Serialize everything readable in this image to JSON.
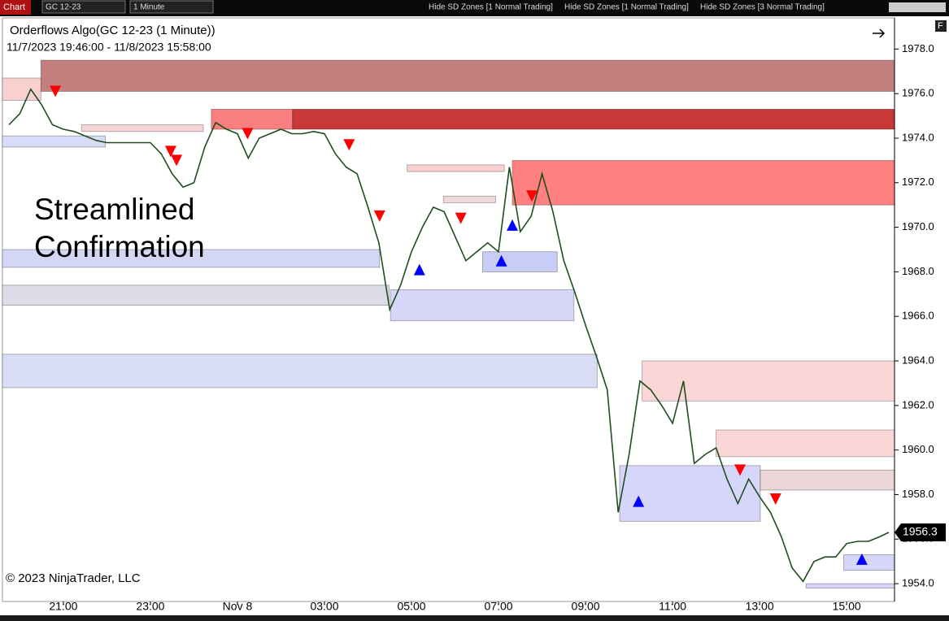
{
  "toolbar": {
    "app": "Chart",
    "instrument": "GC 12-23",
    "interval": "1 Minute",
    "buttons": [
      "Hide SD Zones [1 Normal Trading]",
      "Hide SD Zones [1 Normal Trading]",
      "Hide SD Zones [3 Normal Trading]"
    ],
    "axis_button": "F"
  },
  "chart_data": {
    "type": "line",
    "title": "Orderflows Algo(GC 12-23 (1 Minute))",
    "subtitle": "11/7/2023 19:46:00 - 11/8/2023 15:58:00",
    "annotation": [
      "Streamlined",
      "Confirmation"
    ],
    "copyright": "© 2023 NinjaTrader, LLC",
    "xlim": [
      "2023-11-07 19:36",
      "2023-11-08 16:06"
    ],
    "xticks": [
      {
        "value": "2023-11-07 21:00",
        "label": "21:00"
      },
      {
        "value": "2023-11-07 23:00",
        "label": "23:00"
      },
      {
        "value": "2023-11-08 01:00",
        "label": "Nov 8"
      },
      {
        "value": "2023-11-08 03:00",
        "label": "03:00"
      },
      {
        "value": "2023-11-08 05:00",
        "label": "05:00"
      },
      {
        "value": "2023-11-08 07:00",
        "label": "07:00"
      },
      {
        "value": "2023-11-08 09:00",
        "label": "09:00"
      },
      {
        "value": "2023-11-08 11:00",
        "label": "11:00"
      },
      {
        "value": "2023-11-08 13:00",
        "label": "13:00"
      },
      {
        "value": "2023-11-08 15:00",
        "label": "15:00"
      }
    ],
    "ylim": [
      1953.2,
      1979.4
    ],
    "yticks": [
      {
        "value": 1954,
        "label": "1954.0"
      },
      {
        "value": 1956,
        "label": "1956.0"
      },
      {
        "value": 1958,
        "label": "1958.0"
      },
      {
        "value": 1960,
        "label": "1960.0"
      },
      {
        "value": 1962,
        "label": "1962.0"
      },
      {
        "value": 1964,
        "label": "1964.0"
      },
      {
        "value": 1966,
        "label": "1966.0"
      },
      {
        "value": 1968,
        "label": "1968.0"
      },
      {
        "value": 1970,
        "label": "1970.0"
      },
      {
        "value": 1972,
        "label": "1972.0"
      },
      {
        "value": 1974,
        "label": "1974.0"
      },
      {
        "value": 1976,
        "label": "1976.0"
      },
      {
        "value": 1978,
        "label": "1978.0"
      }
    ],
    "grid": false,
    "last_price": 1956.3,
    "series": [
      {
        "color": "#1f4d1f",
        "x": [
          "2023-11-07 19:45",
          "2023-11-07 20:00",
          "2023-11-07 20:15",
          "2023-11-07 20:30",
          "2023-11-07 20:45",
          "2023-11-07 21:00",
          "2023-11-07 21:15",
          "2023-11-07 21:30",
          "2023-11-07 21:45",
          "2023-11-07 22:00",
          "2023-11-07 22:15",
          "2023-11-07 22:30",
          "2023-11-07 22:45",
          "2023-11-07 23:00",
          "2023-11-07 23:15",
          "2023-11-07 23:30",
          "2023-11-07 23:45",
          "2023-11-08 00:00",
          "2023-11-08 00:15",
          "2023-11-08 00:30",
          "2023-11-08 00:45",
          "2023-11-08 01:00",
          "2023-11-08 01:15",
          "2023-11-08 01:30",
          "2023-11-08 01:45",
          "2023-11-08 02:00",
          "2023-11-08 02:15",
          "2023-11-08 02:30",
          "2023-11-08 02:45",
          "2023-11-08 03:00",
          "2023-11-08 03:15",
          "2023-11-08 03:30",
          "2023-11-08 03:45",
          "2023-11-08 04:00",
          "2023-11-08 04:15",
          "2023-11-08 04:30",
          "2023-11-08 04:45",
          "2023-11-08 05:00",
          "2023-11-08 05:15",
          "2023-11-08 05:30",
          "2023-11-08 05:45",
          "2023-11-08 06:00",
          "2023-11-08 06:15",
          "2023-11-08 06:30",
          "2023-11-08 06:45",
          "2023-11-08 07:00",
          "2023-11-08 07:15",
          "2023-11-08 07:30",
          "2023-11-08 07:45",
          "2023-11-08 08:00",
          "2023-11-08 08:15",
          "2023-11-08 08:30",
          "2023-11-08 08:45",
          "2023-11-08 09:00",
          "2023-11-08 09:15",
          "2023-11-08 09:30",
          "2023-11-08 09:45",
          "2023-11-08 10:00",
          "2023-11-08 10:15",
          "2023-11-08 10:30",
          "2023-11-08 10:45",
          "2023-11-08 11:00",
          "2023-11-08 11:15",
          "2023-11-08 11:30",
          "2023-11-08 11:45",
          "2023-11-08 12:00",
          "2023-11-08 12:15",
          "2023-11-08 12:30",
          "2023-11-08 12:45",
          "2023-11-08 13:00",
          "2023-11-08 13:15",
          "2023-11-08 13:30",
          "2023-11-08 13:45",
          "2023-11-08 14:00",
          "2023-11-08 14:15",
          "2023-11-08 14:30",
          "2023-11-08 14:45",
          "2023-11-08 15:00",
          "2023-11-08 15:15",
          "2023-11-08 15:30",
          "2023-11-08 15:45",
          "2023-11-08 15:58"
        ],
        "values": [
          1974.6,
          1975.1,
          1976.2,
          1975.5,
          1974.6,
          1974.4,
          1974.3,
          1974.1,
          1973.9,
          1973.8,
          1973.8,
          1973.8,
          1973.8,
          1973.8,
          1973.3,
          1972.4,
          1971.8,
          1972.0,
          1973.6,
          1974.7,
          1974.4,
          1974.2,
          1973.1,
          1974.0,
          1974.2,
          1974.4,
          1974.2,
          1974.2,
          1974.3,
          1974.2,
          1973.3,
          1972.7,
          1972.4,
          1970.9,
          1969.3,
          1966.3,
          1967.4,
          1968.9,
          1970.0,
          1970.9,
          1970.7,
          1969.6,
          1968.5,
          1968.9,
          1969.3,
          1968.9,
          1972.7,
          1969.8,
          1970.5,
          1972.4,
          1970.7,
          1968.5,
          1967.1,
          1965.6,
          1964.2,
          1962.7,
          1957.2,
          1959.8,
          1963.1,
          1962.7,
          1962.0,
          1961.2,
          1963.1,
          1959.4,
          1959.8,
          1960.1,
          1958.7,
          1957.6,
          1958.7,
          1957.9,
          1957.2,
          1956.1,
          1954.7,
          1954.1,
          1955.0,
          1955.2,
          1955.2,
          1955.8,
          1955.9,
          1955.9,
          1956.1,
          1956.3
        ]
      }
    ],
    "zones": [
      {
        "from": "2023-11-07 20:29",
        "to": "2023-11-08 16:06",
        "low": 1976.1,
        "high": 1977.5,
        "color": "#c47f7f"
      },
      {
        "from": "2023-11-07 19:36",
        "to": "2023-11-07 20:29",
        "low": 1975.7,
        "high": 1976.7,
        "color": "#f8d0d0"
      },
      {
        "from": "2023-11-08 00:24",
        "to": "2023-11-08 02:16",
        "low": 1974.4,
        "high": 1975.3,
        "color": "#f87f7f"
      },
      {
        "from": "2023-11-08 02:16",
        "to": "2023-11-08 16:06",
        "low": 1974.4,
        "high": 1975.3,
        "color": "#c83838"
      },
      {
        "from": "2023-11-07 21:25",
        "to": "2023-11-08 00:13",
        "low": 1974.3,
        "high": 1974.6,
        "color": "#f5d5d5"
      },
      {
        "from": "2023-11-07 19:36",
        "to": "2023-11-07 21:58",
        "low": 1973.6,
        "high": 1974.1,
        "color": "#d8dcf8"
      },
      {
        "from": "2023-11-08 04:54",
        "to": "2023-11-08 07:08",
        "low": 1972.5,
        "high": 1972.8,
        "color": "#f8d0d0"
      },
      {
        "from": "2023-11-08 05:44",
        "to": "2023-11-08 06:56",
        "low": 1971.1,
        "high": 1971.4,
        "color": "#eed8d8"
      },
      {
        "from": "2023-11-08 07:19",
        "to": "2023-11-08 16:06",
        "low": 1971.0,
        "high": 1973.0,
        "color": "#ff8080"
      },
      {
        "from": "2023-11-07 19:36",
        "to": "2023-11-08 04:16",
        "low": 1968.2,
        "high": 1969.0,
        "color": "#d4d6f5"
      },
      {
        "from": "2023-11-07 19:36",
        "to": "2023-11-08 04:29",
        "low": 1966.5,
        "high": 1967.4,
        "color": "#dcdce8"
      },
      {
        "from": "2023-11-08 04:31",
        "to": "2023-11-08 08:44",
        "low": 1965.8,
        "high": 1967.2,
        "color": "#d6d6f8"
      },
      {
        "from": "2023-11-08 06:38",
        "to": "2023-11-08 08:21",
        "low": 1968.0,
        "high": 1968.9,
        "color": "#c8cdf5"
      },
      {
        "from": "2023-11-07 19:36",
        "to": "2023-11-08 09:16",
        "low": 1962.8,
        "high": 1964.3,
        "color": "#d8dcf5"
      },
      {
        "from": "2023-11-08 10:18",
        "to": "2023-11-08 16:06",
        "low": 1962.2,
        "high": 1964.0,
        "color": "#fad6d6"
      },
      {
        "from": "2023-11-08 12:00",
        "to": "2023-11-08 16:06",
        "low": 1959.7,
        "high": 1960.9,
        "color": "#fad6d6"
      },
      {
        "from": "2023-11-08 09:47",
        "to": "2023-11-08 13:01",
        "low": 1956.8,
        "high": 1959.3,
        "color": "#d6d6fa"
      },
      {
        "from": "2023-11-08 13:01",
        "to": "2023-11-08 16:06",
        "low": 1958.2,
        "high": 1959.1,
        "color": "#ead6d6"
      },
      {
        "from": "2023-11-08 14:56",
        "to": "2023-11-08 16:06",
        "low": 1954.6,
        "high": 1955.3,
        "color": "#d6d6fa"
      },
      {
        "from": "2023-11-08 14:04",
        "to": "2023-11-08 16:06",
        "low": 1953.8,
        "high": 1954.0,
        "color": "#d6d6fa"
      }
    ],
    "signals": [
      {
        "time": "2023-11-07 20:49",
        "price": 1976.1,
        "direction": "down",
        "color": "#ff0000"
      },
      {
        "time": "2023-11-07 23:28",
        "price": 1973.4,
        "direction": "down",
        "color": "#ff0000"
      },
      {
        "time": "2023-11-07 23:36",
        "price": 1973.0,
        "direction": "down",
        "color": "#ff0000"
      },
      {
        "time": "2023-11-08 01:14",
        "price": 1974.2,
        "direction": "down",
        "color": "#ff0000"
      },
      {
        "time": "2023-11-08 03:34",
        "price": 1973.7,
        "direction": "down",
        "color": "#ff0000"
      },
      {
        "time": "2023-11-08 04:16",
        "price": 1970.5,
        "direction": "down",
        "color": "#ff0000"
      },
      {
        "time": "2023-11-08 06:08",
        "price": 1970.4,
        "direction": "down",
        "color": "#ff0000"
      },
      {
        "time": "2023-11-08 07:46",
        "price": 1971.4,
        "direction": "down",
        "color": "#ff0000"
      },
      {
        "time": "2023-11-08 12:33",
        "price": 1959.1,
        "direction": "down",
        "color": "#ff0000"
      },
      {
        "time": "2023-11-08 13:22",
        "price": 1957.8,
        "direction": "down",
        "color": "#ff0000"
      },
      {
        "time": "2023-11-08 05:11",
        "price": 1968.1,
        "direction": "up",
        "color": "#0000ff"
      },
      {
        "time": "2023-11-08 07:04",
        "price": 1968.5,
        "direction": "up",
        "color": "#0000ff"
      },
      {
        "time": "2023-11-08 07:19",
        "price": 1970.1,
        "direction": "up",
        "color": "#0000ff"
      },
      {
        "time": "2023-11-08 10:13",
        "price": 1957.7,
        "direction": "up",
        "color": "#0000ff"
      },
      {
        "time": "2023-11-08 15:21",
        "price": 1955.1,
        "direction": "up",
        "color": "#0000ff"
      }
    ]
  }
}
